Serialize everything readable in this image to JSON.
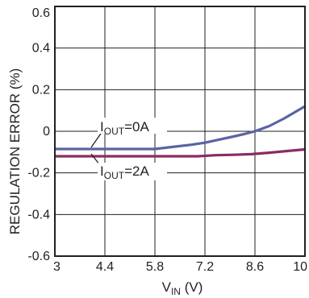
{
  "chart_data": {
    "type": "line",
    "title": "",
    "xlabel": {
      "main": "V",
      "sub": "IN",
      "unit": " (V)"
    },
    "ylabel": "REGULATION ERROR (%)",
    "xlim": [
      3,
      10
    ],
    "ylim": [
      -0.6,
      0.6
    ],
    "x_ticks": [
      "3",
      "4.4",
      "5.8",
      "7.2",
      "8.6",
      "10"
    ],
    "y_ticks": [
      "0.6",
      "0.4",
      "0.2",
      "0",
      "-0.2",
      "-0.4",
      "-0.6"
    ],
    "x_tick_values": [
      3,
      4.4,
      5.8,
      7.2,
      8.6,
      10
    ],
    "y_tick_values": [
      0.6,
      0.4,
      0.2,
      0,
      -0.2,
      -0.4,
      -0.6
    ],
    "grid": true,
    "legend": "none",
    "series": [
      {
        "name": "IOUT=0A",
        "label_main": "I",
        "label_sub": "OUT",
        "label_rest": "=0A",
        "color": "#5b63a3",
        "x": [
          3,
          3.5,
          4,
          4.5,
          5,
          5.5,
          5.8,
          6.3,
          6.8,
          7.2,
          7.6,
          8.0,
          8.3,
          8.6,
          9.0,
          9.4,
          9.7,
          10
        ],
        "y": [
          -0.085,
          -0.085,
          -0.085,
          -0.085,
          -0.085,
          -0.085,
          -0.085,
          -0.075,
          -0.065,
          -0.055,
          -0.04,
          -0.025,
          -0.013,
          0.0,
          0.025,
          0.06,
          0.09,
          0.12
        ]
      },
      {
        "name": "IOUT=2A",
        "label_main": "I",
        "label_sub": "OUT",
        "label_rest": "=2A",
        "color": "#8b2c62",
        "x": [
          3,
          3.5,
          4,
          4.5,
          5,
          5.5,
          6,
          6.5,
          7,
          7.5,
          8,
          8.5,
          9,
          9.5,
          10
        ],
        "y": [
          -0.12,
          -0.12,
          -0.12,
          -0.12,
          -0.12,
          -0.12,
          -0.12,
          -0.12,
          -0.12,
          -0.115,
          -0.113,
          -0.11,
          -0.103,
          -0.095,
          -0.087
        ]
      }
    ]
  }
}
